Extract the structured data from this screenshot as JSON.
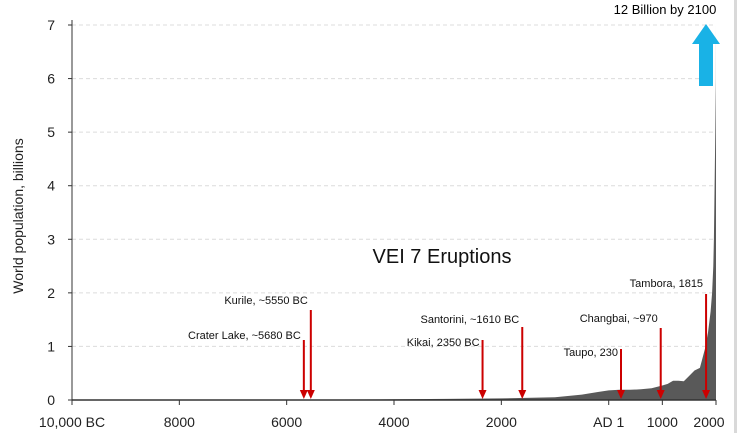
{
  "chart_data": {
    "type": "area",
    "title": "VEI 7 Eruptions",
    "ylabel": "World population, billions",
    "xlabel": "",
    "xlim": [
      -10000,
      2000
    ],
    "ylim": [
      0,
      7
    ],
    "grid": true,
    "x_ticks": [
      {
        "value": -10000,
        "label": "10,000 BC"
      },
      {
        "value": -8000,
        "label": "8000"
      },
      {
        "value": -6000,
        "label": "6000"
      },
      {
        "value": -4000,
        "label": "4000"
      },
      {
        "value": -2000,
        "label": "2000"
      },
      {
        "value": 1,
        "label": "AD 1"
      },
      {
        "value": 1000,
        "label": "1000"
      },
      {
        "value": 2000,
        "label": "2000"
      }
    ],
    "y_ticks": [
      {
        "value": 0,
        "label": "0"
      },
      {
        "value": 1,
        "label": "1"
      },
      {
        "value": 2,
        "label": "2"
      },
      {
        "value": 3,
        "label": "3"
      },
      {
        "value": 4,
        "label": "4"
      },
      {
        "value": 5,
        "label": "5"
      },
      {
        "value": 6,
        "label": "6"
      },
      {
        "value": 7,
        "label": "7"
      }
    ],
    "x": [
      -10000,
      -8000,
      -6000,
      -5000,
      -4000,
      -3000,
      -2000,
      -1000,
      -500,
      -200,
      1,
      200,
      400,
      600,
      800,
      1000,
      1100,
      1200,
      1300,
      1400,
      1500,
      1600,
      1700,
      1750,
      1800,
      1850,
      1900,
      1927,
      1950,
      1960,
      1974,
      1987,
      1999,
      2011
    ],
    "values": [
      0.004,
      0.006,
      0.008,
      0.01,
      0.014,
      0.02,
      0.03,
      0.05,
      0.1,
      0.15,
      0.18,
      0.19,
      0.19,
      0.2,
      0.22,
      0.27,
      0.3,
      0.36,
      0.36,
      0.35,
      0.45,
      0.55,
      0.6,
      0.79,
      0.98,
      1.26,
      1.65,
      2.0,
      2.5,
      3.0,
      4.0,
      5.0,
      6.0,
      7.0
    ],
    "eruptions": [
      {
        "label": "Crater Lake, ~5680 BC",
        "year": -5680,
        "label_side": "left"
      },
      {
        "label": "Kurile, ~5550 BC",
        "year": -5550,
        "label_side": "left"
      },
      {
        "label": "Kikai, 2350 BC",
        "year": -2350,
        "label_side": "left"
      },
      {
        "label": "Santorini, ~1610 BC",
        "year": -1610,
        "label_side": "left"
      },
      {
        "label": "Taupo, 230",
        "year": 230,
        "label_side": "left"
      },
      {
        "label": "Changbai, ~970",
        "year": 970,
        "label_side": "left"
      },
      {
        "label": "Tambora, 1815",
        "year": 1815,
        "label_side": "left"
      }
    ],
    "projection": {
      "label": "12 Billion by 2100",
      "year": 2000
    }
  },
  "colors": {
    "area": "#595959",
    "arrow_red": "#cc0000",
    "arrow_blue": "#19b2e6",
    "grid": "#dcdcdc",
    "axis": "#333333"
  }
}
